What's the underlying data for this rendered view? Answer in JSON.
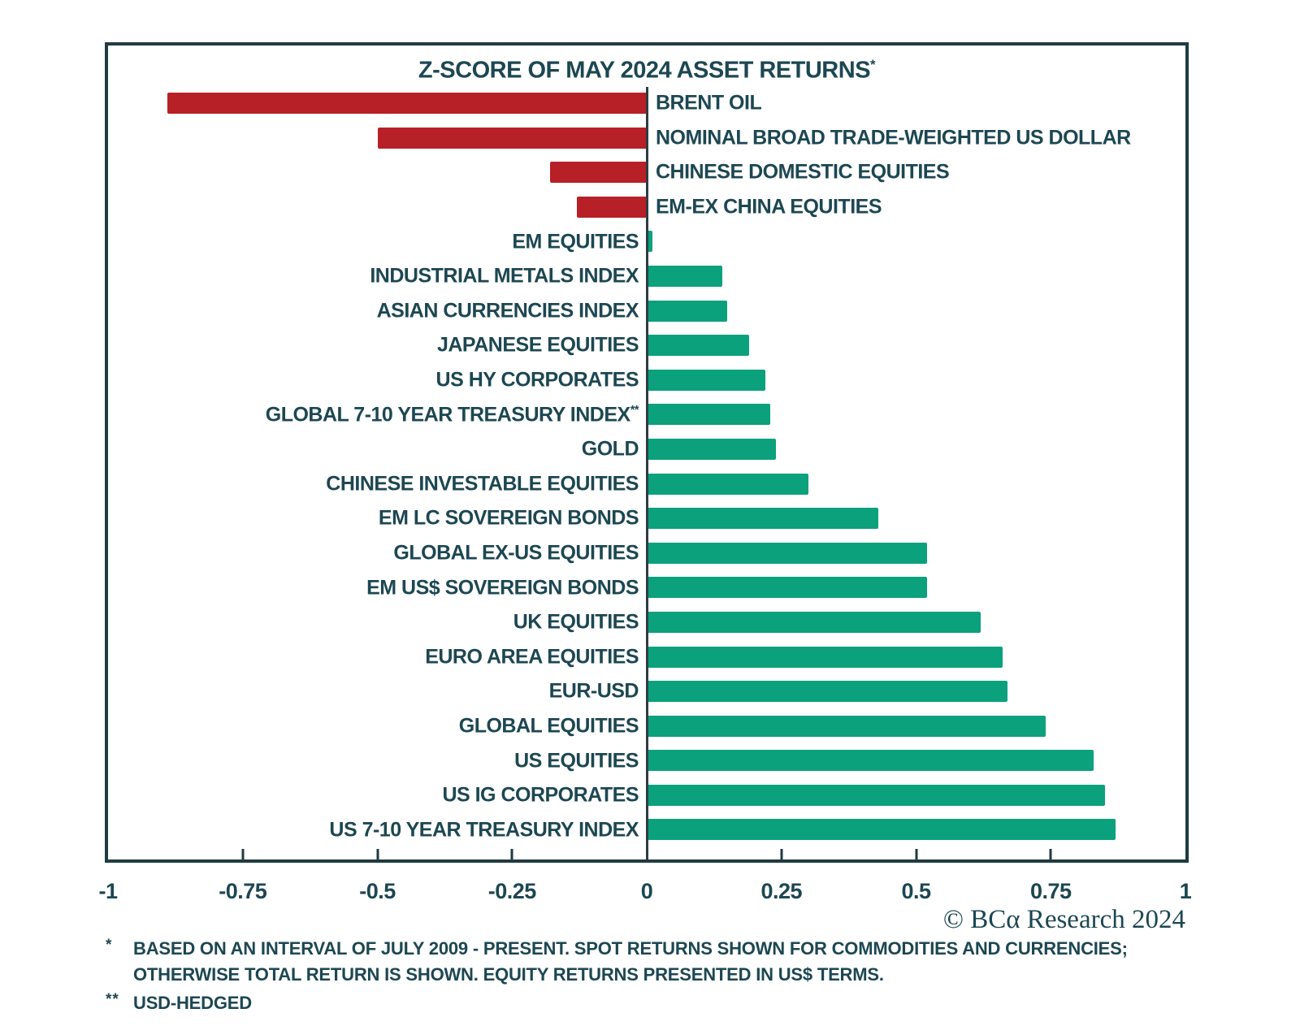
{
  "theme": {
    "background": "#FFFFFF",
    "text_color": "#1C4752",
    "frame_color": "#1F3B43",
    "zero_line_color": "#2F3C42",
    "negative_color": "#B72026",
    "positive_color": "#0AA17C"
  },
  "chart": {
    "title": {
      "text": "Z-SCORE OF MAY 2024 ASSET RETURNS",
      "marker": "*"
    }
  },
  "chart_data": {
    "type": "bar",
    "orientation": "horizontal",
    "title": "Z-SCORE OF MAY 2024 ASSET RETURNS*",
    "xlabel": "",
    "ylabel": "",
    "xlim": [
      -1,
      1
    ],
    "xticks": [
      -1,
      -0.75,
      -0.5,
      -0.25,
      0,
      0.25,
      0.5,
      0.75,
      1
    ],
    "xtick_labels": [
      "-1",
      "-0.75",
      "-0.5",
      "-0.25",
      "0",
      "0.25",
      "0.5",
      "0.75",
      "1"
    ],
    "grid": false,
    "legend": null,
    "label_layout": "negative bars labeled right of zero axis; positive bars labeled left of zero axis",
    "categories": [
      "BRENT OIL",
      "NOMINAL BROAD TRADE-WEIGHTED US DOLLAR",
      "CHINESE DOMESTIC EQUITIES",
      "EM-EX CHINA EQUITIES",
      "EM EQUITIES",
      "INDUSTRIAL METALS INDEX",
      "ASIAN CURRENCIES INDEX",
      "JAPANESE EQUITIES",
      "US HY CORPORATES",
      "GLOBAL 7-10 YEAR TREASURY INDEX**",
      "GOLD",
      "CHINESE INVESTABLE EQUITIES",
      "EM LC SOVEREIGN BONDS",
      "GLOBAL EX-US EQUITIES",
      "EM US$ SOVEREIGN BONDS",
      "UK EQUITIES",
      "EURO AREA EQUITIES",
      "EUR-USD",
      "GLOBAL EQUITIES",
      "US EQUITIES",
      "US IG CORPORATES",
      "US 7-10 YEAR TREASURY INDEX"
    ],
    "values": [
      -0.89,
      -0.5,
      -0.18,
      -0.13,
      0.01,
      0.14,
      0.15,
      0.19,
      0.22,
      0.23,
      0.24,
      0.3,
      0.43,
      0.52,
      0.52,
      0.62,
      0.66,
      0.67,
      0.74,
      0.83,
      0.85,
      0.87
    ],
    "bar_color_negative": "#B72026",
    "bar_color_positive": "#0AA17C"
  },
  "footer": {
    "copyright": "© BCα Research 2024",
    "footnotes": [
      {
        "marker": "*",
        "lines": [
          "BASED ON AN INTERVAL OF JULY 2009 - PRESENT. SPOT RETURNS SHOWN FOR COMMODITIES AND CURRENCIES;",
          "OTHERWISE TOTAL RETURN IS SHOWN. EQUITY RETURNS PRESENTED IN US$ TERMS."
        ]
      },
      {
        "marker": "**",
        "lines": [
          "USD-HEDGED"
        ]
      }
    ]
  }
}
